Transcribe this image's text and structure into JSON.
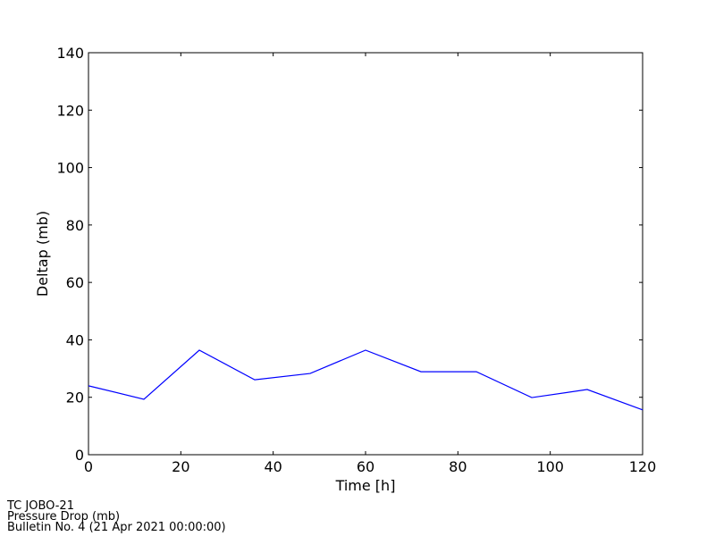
{
  "chart_data": {
    "type": "line",
    "x_label": "Time [h]",
    "y_label": "Deltap (mb)",
    "x": [
      0,
      12,
      24,
      36,
      48,
      60,
      72,
      84,
      96,
      108,
      120
    ],
    "series": [
      {
        "name": "Deltap",
        "color": "#0000ff",
        "values": [
          24,
          19.3,
          36.4,
          26.1,
          28.3,
          36.4,
          28.9,
          28.9,
          19.9,
          22.7,
          15.6
        ]
      }
    ],
    "xlim": [
      0,
      120
    ],
    "xticks": [
      0,
      20,
      40,
      60,
      80,
      100,
      120
    ],
    "ylim": [
      0,
      140
    ],
    "yticks": [
      0,
      20,
      40,
      60,
      80,
      100,
      120,
      140
    ],
    "annotations": [
      "TC JOBO-21",
      "Pressure Drop (mb)",
      "Bulletin No. 4 (21 Apr 2021  00:00:00)"
    ]
  }
}
